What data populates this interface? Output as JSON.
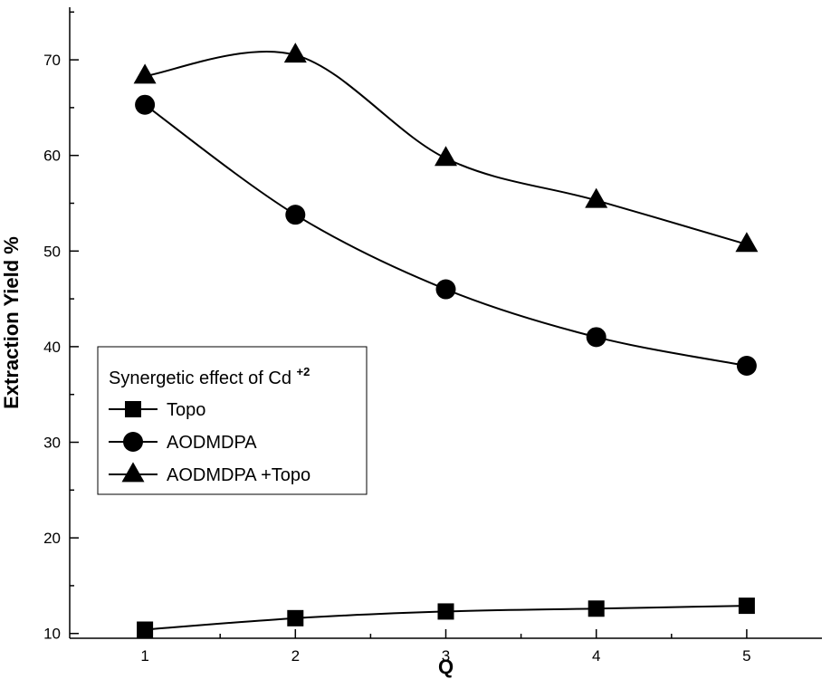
{
  "chart_data": {
    "type": "line",
    "xlabel": "Q",
    "ylabel": "Extraction Yield %",
    "xlim": [
      0.5,
      5.5
    ],
    "ylim": [
      9.5,
      75.5
    ],
    "x_ticks": [
      1,
      2,
      3,
      4,
      5
    ],
    "y_ticks": [
      10,
      20,
      30,
      40,
      50,
      60,
      70
    ],
    "grid": false,
    "legend": {
      "title": "Synergetic effect of  Cd",
      "title_superscript": "+2",
      "placement": "left-middle"
    },
    "x": [
      1,
      2,
      3,
      4,
      5
    ],
    "series": [
      {
        "name": "Topo",
        "marker": "square",
        "values": [
          10.4,
          11.6,
          12.3,
          12.6,
          12.9
        ]
      },
      {
        "name": "AODMDPA",
        "marker": "circle",
        "values": [
          65.3,
          53.8,
          46.0,
          41.0,
          38.0
        ]
      },
      {
        "name": "AODMDPA +Topo",
        "marker": "triangle",
        "values": [
          68.3,
          70.5,
          59.7,
          55.3,
          50.7
        ]
      }
    ],
    "colors": {
      "line": "#000000",
      "marker": "#000000",
      "background": "#ffffff"
    }
  }
}
